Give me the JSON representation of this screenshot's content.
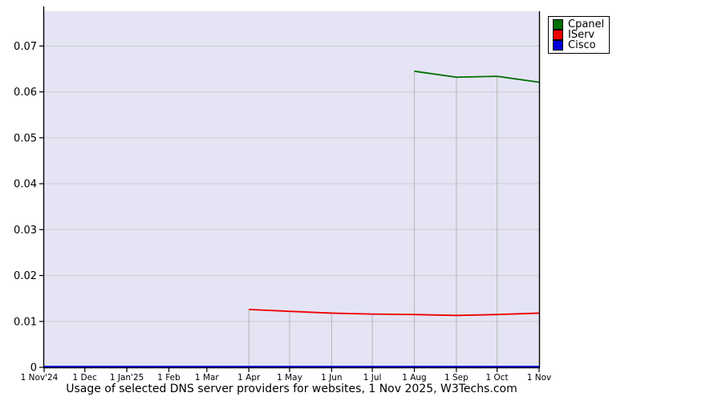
{
  "chart_data": {
    "type": "line",
    "title": "Usage of selected DNS server providers for websites, 1 Nov 2025, W3Techs.com",
    "xlabel": "",
    "ylabel": "",
    "categories": [
      "1 Nov'24",
      "1 Dec",
      "1 Jan'25",
      "1 Feb",
      "1 Mar",
      "1 Apr",
      "1 May",
      "1 Jun",
      "1 Jul",
      "1 Aug",
      "1 Sep",
      "1 Oct",
      "1 Nov"
    ],
    "series": [
      {
        "name": "Cpanel",
        "color": "#006f00",
        "values": [
          null,
          null,
          null,
          null,
          null,
          null,
          null,
          null,
          null,
          0.0645,
          0.0632,
          0.0634,
          0.0621
        ]
      },
      {
        "name": "IServ",
        "color": "#ee0000",
        "values": [
          null,
          null,
          null,
          null,
          null,
          0.0126,
          0.0122,
          0.0118,
          0.0116,
          0.0115,
          0.0113,
          0.0115,
          0.0118
        ]
      },
      {
        "name": "Cisco",
        "color": "#0000dd",
        "values": [
          0,
          0,
          0,
          0,
          0,
          0,
          0,
          0,
          0,
          0,
          0,
          0,
          0
        ]
      }
    ],
    "y_ticks": [
      0,
      0.01,
      0.02,
      0.03,
      0.04,
      0.05,
      0.06,
      0.07
    ],
    "ylim": [
      0,
      0.0776
    ],
    "grid": "on",
    "legend_position": "top-right-outside",
    "plot_bg_color": "#e4e4f5"
  }
}
